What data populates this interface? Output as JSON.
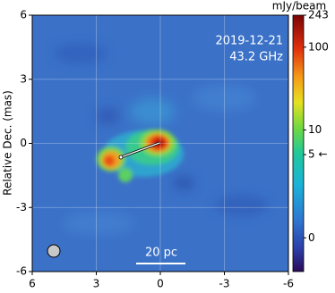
{
  "chart_data": {
    "type": "image",
    "ylabel": "Relative Dec. (mas)",
    "xlim": [
      6,
      -6
    ],
    "ylim": [
      -6,
      6
    ],
    "xticks": [
      6,
      3,
      0,
      -3,
      -6
    ],
    "yticks": [
      -6,
      -3,
      0,
      3,
      6
    ],
    "grid": true,
    "annotations": [
      "2019-12-21",
      "43.2 GHz"
    ],
    "scalebar_label": "20 pc",
    "colorbar": {
      "label": "mJy/beam",
      "lim": [
        -1.08,
        243
      ],
      "scale": "asinh",
      "ticks": [
        0,
        {
          "value": 5,
          "label": "5 ←"
        },
        10,
        100,
        243
      ]
    }
  }
}
